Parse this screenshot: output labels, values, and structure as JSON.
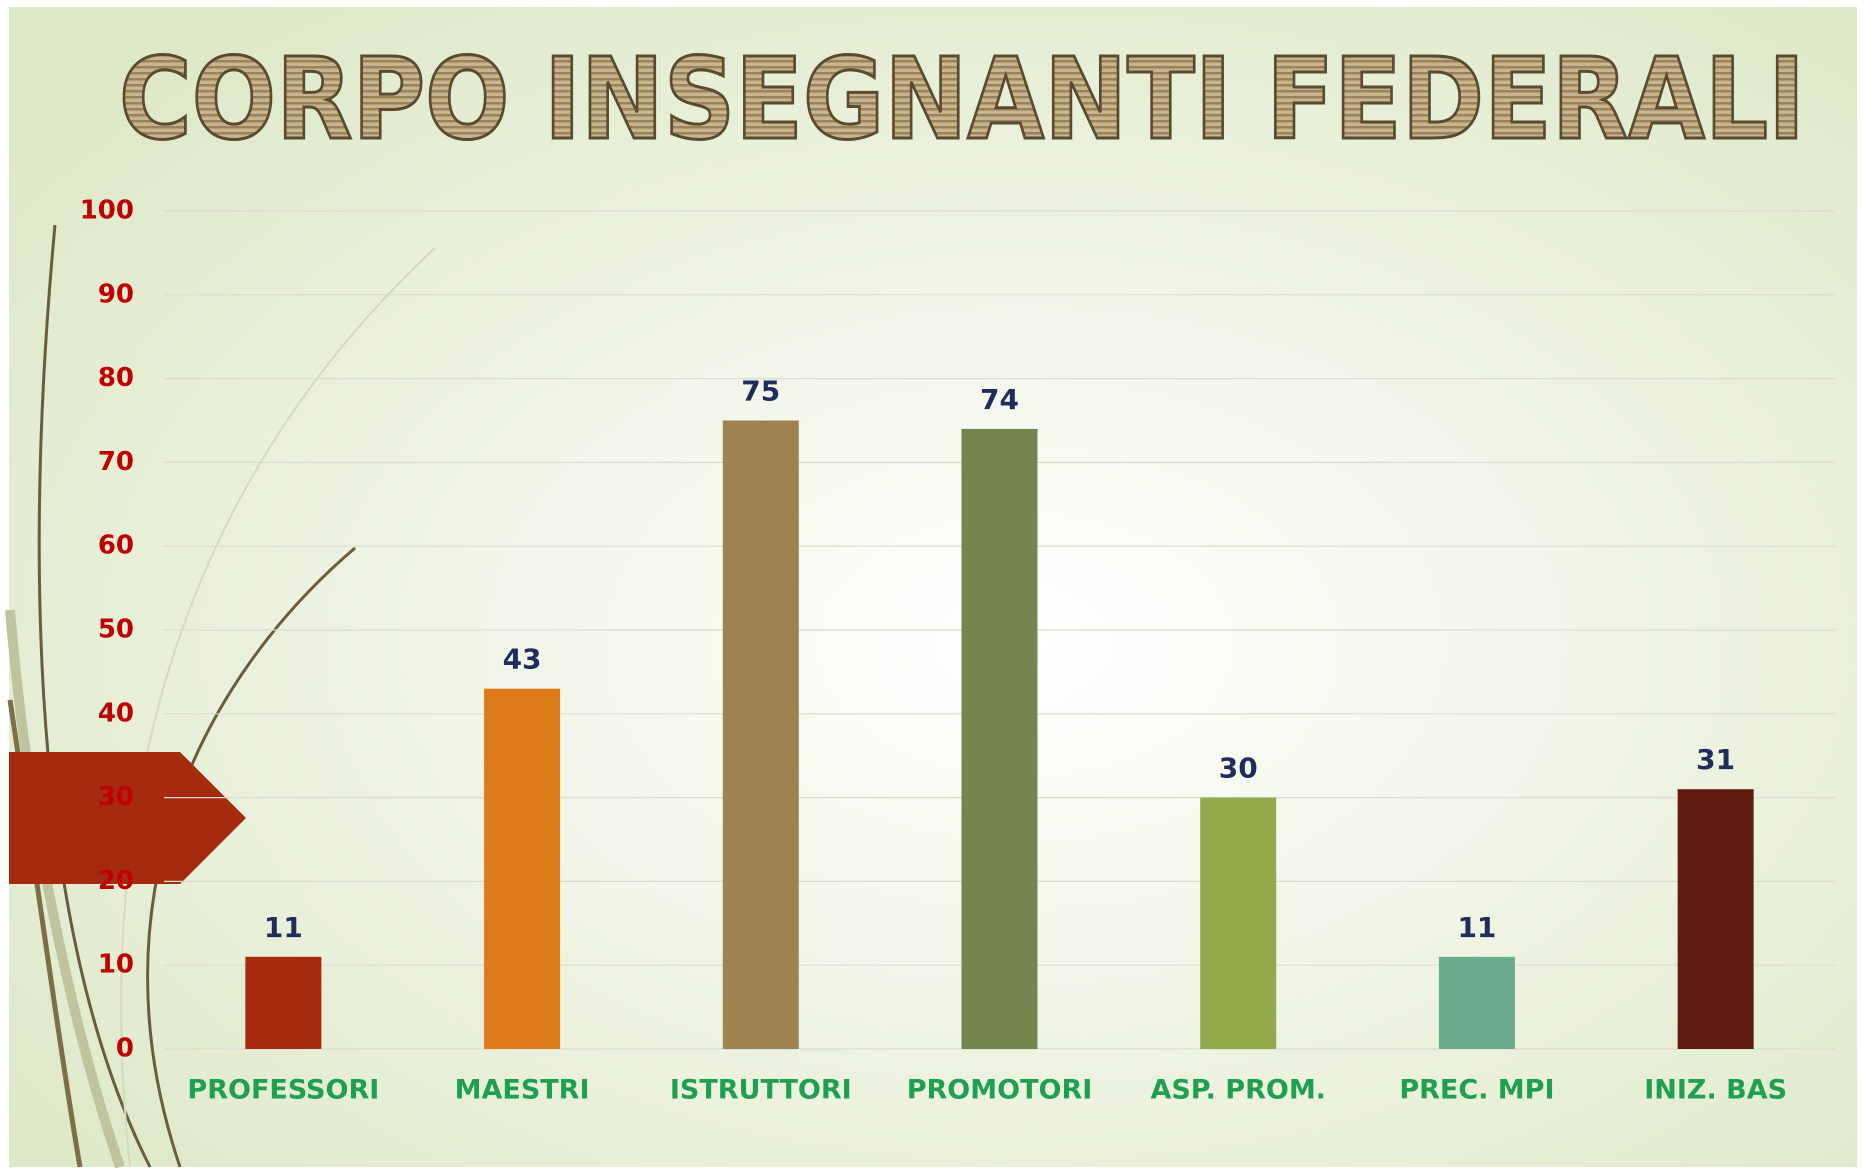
{
  "chart_data": {
    "type": "bar",
    "title": "CORPO INSEGNANTI FEDERALI",
    "categories": [
      "PROFESSORI",
      "MAESTRI",
      "ISTRUTTORI",
      "PROMOTORI",
      "ASP. PROM.",
      "PREC. MPI",
      "INIZ. BAS"
    ],
    "values": [
      11,
      43,
      75,
      74,
      30,
      11,
      31
    ],
    "colors": [
      "#a52a10",
      "#de7b1a",
      "#9e8250",
      "#738650",
      "#93aa4a",
      "#6aab8e",
      "#601c0e"
    ],
    "ylim": [
      0,
      100
    ],
    "yticks": [
      0,
      10,
      20,
      30,
      40,
      50,
      60,
      70,
      80,
      90,
      100
    ],
    "grid": true
  }
}
